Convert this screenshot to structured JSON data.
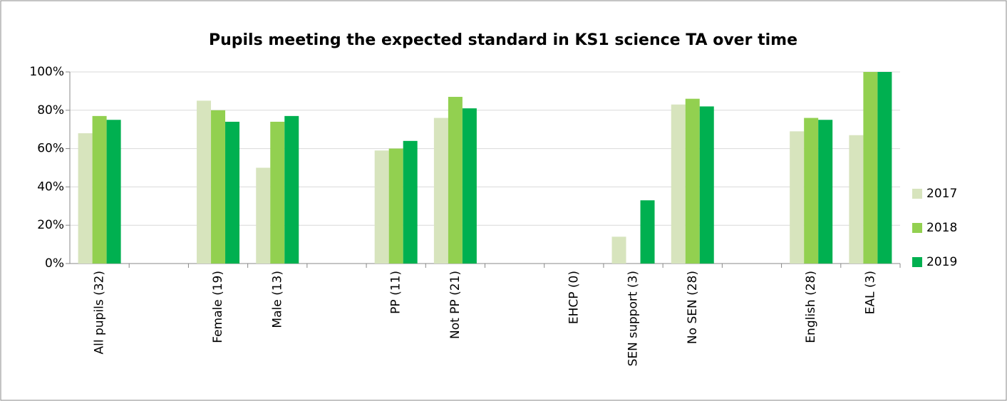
{
  "chart_data": {
    "type": "bar",
    "title": "Pupils meeting the expected standard in KS1 science TA over time",
    "categories": [
      "All pupils (32)",
      null,
      "Female (19)",
      "Male (13)",
      null,
      "PP (11)",
      "Not PP (21)",
      null,
      "EHCP (0)",
      "SEN support (3)",
      "No SEN (28)",
      null,
      "English (28)",
      "EAL (3)"
    ],
    "series": [
      {
        "name": "2017",
        "color": "#d7e4bd",
        "values": [
          68,
          null,
          85,
          50,
          null,
          59,
          76,
          null,
          null,
          14,
          83,
          null,
          69,
          67
        ]
      },
      {
        "name": "2018",
        "color": "#92d050",
        "values": [
          77,
          null,
          80,
          74,
          null,
          60,
          87,
          null,
          null,
          0,
          86,
          null,
          76,
          100
        ]
      },
      {
        "name": "2019",
        "color": "#00b050",
        "values": [
          75,
          null,
          74,
          77,
          null,
          64,
          81,
          null,
          null,
          33,
          82,
          null,
          75,
          100
        ]
      }
    ],
    "ylim": [
      0,
      100
    ],
    "yticks": [
      {
        "value": 0,
        "label": "0%"
      },
      {
        "value": 20,
        "label": "20%"
      },
      {
        "value": 40,
        "label": "40%"
      },
      {
        "value": 60,
        "label": "60%"
      },
      {
        "value": 80,
        "label": "80%"
      },
      {
        "value": 100,
        "label": "100%"
      }
    ],
    "grid": true,
    "legend": "right"
  }
}
